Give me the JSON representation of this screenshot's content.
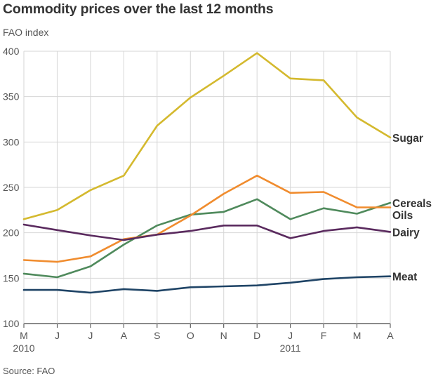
{
  "header": {
    "title": "Commodity prices over the last 12 months",
    "ylabel": "FAO index",
    "source": "Source: FAO"
  },
  "chart_data": {
    "type": "line",
    "title": "Commodity prices over the last 12 months",
    "xlabel": "",
    "ylabel": "FAO index",
    "ylim": [
      100,
      400
    ],
    "yticks": [
      100,
      150,
      200,
      250,
      300,
      350,
      400
    ],
    "grid": "vertical and horizontal",
    "categories": [
      "M",
      "J",
      "J",
      "A",
      "S",
      "O",
      "N",
      "D",
      "J",
      "F",
      "M",
      "A"
    ],
    "year_labels": [
      {
        "index": 0,
        "label": "2010"
      },
      {
        "index": 8,
        "label": "2011"
      }
    ],
    "series": [
      {
        "name": "Sugar",
        "label": "Sugar",
        "color": "#d4b92e",
        "values": [
          215,
          225,
          247,
          263,
          318,
          349,
          373,
          398,
          370,
          368,
          327,
          305
        ]
      },
      {
        "name": "Cereals",
        "label": "Cereals",
        "color": "#4f8a5c",
        "values": [
          155,
          151,
          163,
          187,
          208,
          220,
          223,
          237,
          215,
          227,
          221,
          233
        ]
      },
      {
        "name": "Oils",
        "label": "Oils",
        "color": "#f08c2e",
        "values": [
          170,
          168,
          174,
          193,
          198,
          219,
          243,
          263,
          244,
          245,
          228,
          228
        ]
      },
      {
        "name": "Dairy",
        "label": "Dairy",
        "color": "#5a2a5e",
        "values": [
          209,
          203,
          197,
          192,
          198,
          202,
          208,
          208,
          194,
          202,
          206,
          201
        ]
      },
      {
        "name": "Meat",
        "label": "Meat",
        "color": "#1f4466",
        "values": [
          137,
          137,
          134,
          138,
          136,
          140,
          141,
          142,
          145,
          149,
          151,
          152
        ]
      }
    ]
  }
}
